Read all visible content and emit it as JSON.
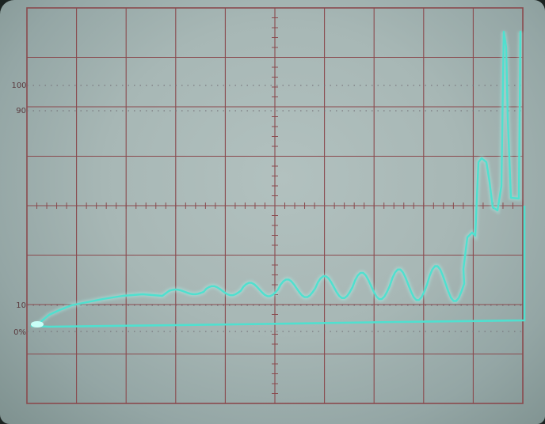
{
  "graticule": {
    "y_labels": [
      {
        "key": "100",
        "text": "100"
      },
      {
        "key": "90",
        "text": "90"
      },
      {
        "key": "10",
        "text": "10"
      },
      {
        "key": "0",
        "text": "0%"
      }
    ]
  },
  "colors": {
    "screen": "#a9b9b7",
    "grid": "#8a4a4e",
    "dotted": "#6f6a72",
    "trace": "#4fe0cf",
    "trace_glow": "#a8fff4"
  }
}
